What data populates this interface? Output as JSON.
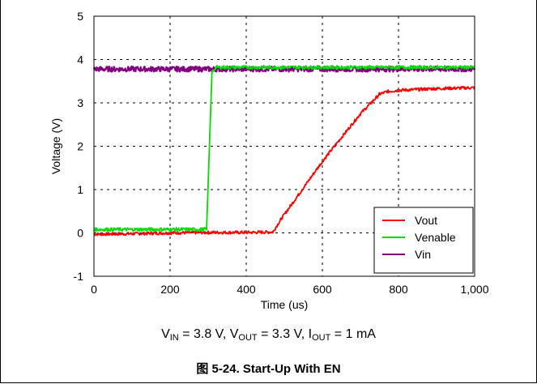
{
  "chart_data": {
    "type": "line",
    "title": "",
    "xlabel": "Time (us)",
    "ylabel": "Voltage (V)",
    "xlim": [
      0,
      1000
    ],
    "ylim": [
      -1,
      5
    ],
    "xticks": [
      0,
      200,
      400,
      600,
      800,
      1000
    ],
    "xtick_labels": [
      "0",
      "200",
      "400",
      "600",
      "800",
      "1,000"
    ],
    "yticks": [
      -1,
      0,
      1,
      2,
      3,
      4,
      5
    ],
    "ytick_labels": [
      "-1",
      "0",
      "1",
      "2",
      "3",
      "4",
      "5"
    ],
    "grid": true,
    "legend_position": "bottom-right",
    "series": [
      {
        "name": "Vout",
        "color": "#ff0000",
        "x": [
          0,
          100,
          200,
          300,
          400,
          470,
          490,
          600,
          700,
          750,
          770,
          800,
          900,
          1000
        ],
        "y": [
          -0.03,
          -0.02,
          0.0,
          0.01,
          0.01,
          0.02,
          0.3,
          1.65,
          2.75,
          3.2,
          3.26,
          3.29,
          3.33,
          3.35
        ]
      },
      {
        "name": "Venable",
        "color": "#00dd00",
        "x": [
          0,
          100,
          200,
          290,
          296,
          310,
          320,
          500,
          700,
          1000
        ],
        "y": [
          0.08,
          0.08,
          0.08,
          0.08,
          0.1,
          3.7,
          3.82,
          3.82,
          3.82,
          3.82
        ]
      },
      {
        "name": "Vin",
        "color": "#800080",
        "x": [
          0,
          250,
          500,
          750,
          1000
        ],
        "y": [
          3.78,
          3.78,
          3.78,
          3.78,
          3.78
        ]
      }
    ]
  },
  "captions": {
    "condition": {
      "v": "V",
      "in_sub": "IN",
      "part1": " = 3.8 V, V",
      "out_sub": "OUT",
      "part2": " = 3.3 V, I",
      "iout_sub": "OUT",
      "part3": " = 1 mA"
    },
    "figure": "图 5-24. Start-Up With EN"
  }
}
